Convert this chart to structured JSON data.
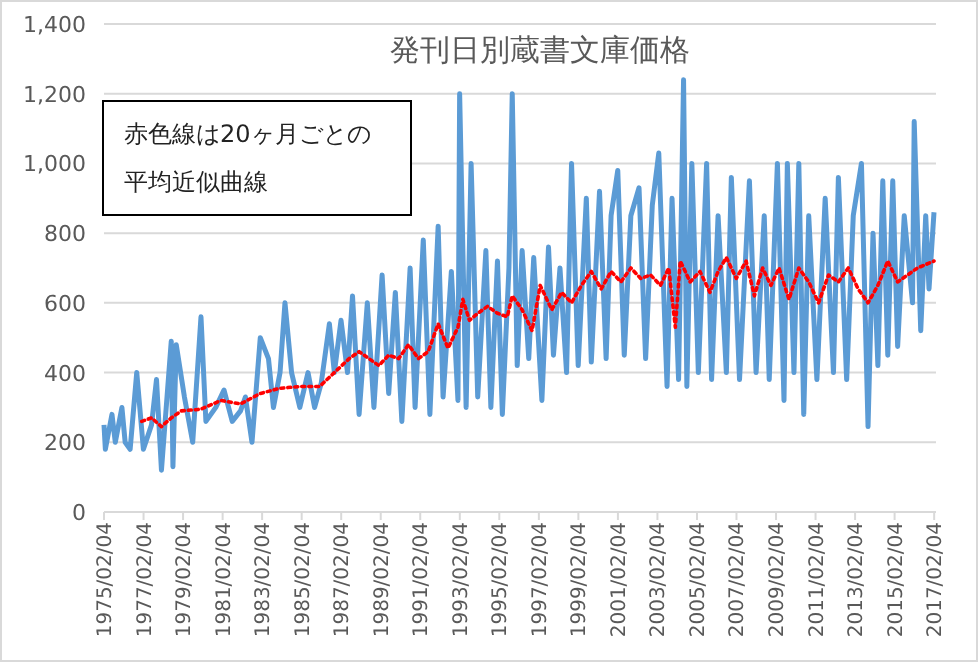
{
  "chart_data": {
    "type": "line",
    "title": "発刊日別蔵書文庫価格",
    "annotations": [
      "赤色線は20ヶ月ごとの平均近似曲線"
    ],
    "series": [
      {
        "color": "#5b9bd5",
        "line_style": "solid",
        "x": [
          "1975-02-04",
          "1975-03",
          "1975-07",
          "1975-09",
          "1976-01",
          "1976-03",
          "1976-06",
          "1976-10",
          "1977-02",
          "1977-07",
          "1977-10",
          "1978-01",
          "1978-07",
          "1978-08",
          "1978-10",
          "1979-03",
          "1979-08",
          "1980-01",
          "1980-04",
          "1980-10",
          "1981-03",
          "1981-08",
          "1982-01",
          "1982-04",
          "1982-08",
          "1983-01",
          "1983-06",
          "1983-09",
          "1984-01",
          "1984-04",
          "1984-08",
          "1985-01",
          "1985-06",
          "1985-10",
          "1986-02",
          "1986-07",
          "1986-10",
          "1987-02",
          "1987-06",
          "1987-09",
          "1988-01",
          "1988-06",
          "1988-10",
          "1989-03",
          "1989-07",
          "1989-11",
          "1990-03",
          "1990-08",
          "1990-11",
          "1991-04",
          "1991-08",
          "1992-01",
          "1992-04",
          "1992-09",
          "1993-01",
          "1993-02",
          "1993-06",
          "1993-09",
          "1994-01",
          "1994-06",
          "1994-09",
          "1995-01",
          "1995-04",
          "1995-08",
          "1995-10",
          "1996-01",
          "1996-04",
          "1996-08",
          "1996-11",
          "1997-04",
          "1997-08",
          "1997-11",
          "1998-03",
          "1998-07",
          "1998-10",
          "1999-02",
          "1999-07",
          "1999-10",
          "2000-03",
          "2000-07",
          "2000-10",
          "2001-02",
          "2001-06",
          "2001-10",
          "2002-03",
          "2002-07",
          "2002-11",
          "2003-03",
          "2003-08",
          "2003-11",
          "2004-03",
          "2004-06",
          "2004-08",
          "2004-11",
          "2005-03",
          "2005-08",
          "2005-11",
          "2006-03",
          "2006-08",
          "2006-11",
          "2007-04",
          "2007-10",
          "2008-02",
          "2008-07",
          "2008-10",
          "2009-03",
          "2009-07",
          "2009-09",
          "2010-01",
          "2010-04",
          "2010-07",
          "2010-10",
          "2011-03",
          "2011-08",
          "2012-01",
          "2012-04",
          "2012-09",
          "2013-01",
          "2013-06",
          "2013-10",
          "2014-01",
          "2014-04",
          "2014-07",
          "2014-10",
          "2015-01",
          "2015-04",
          "2015-08",
          "2016-01",
          "2016-02",
          "2016-06",
          "2016-09",
          "2016-11",
          "2017-02"
        ],
        "values": [
          250,
          180,
          280,
          200,
          300,
          200,
          180,
          400,
          180,
          250,
          380,
          120,
          490,
          130,
          480,
          330,
          200,
          560,
          260,
          300,
          350,
          260,
          290,
          330,
          200,
          500,
          440,
          300,
          400,
          600,
          400,
          300,
          400,
          300,
          370,
          540,
          400,
          550,
          400,
          620,
          280,
          600,
          300,
          680,
          340,
          630,
          260,
          700,
          300,
          780,
          280,
          820,
          330,
          690,
          320,
          1200,
          300,
          1000,
          330,
          750,
          300,
          720,
          280,
          700,
          1200,
          420,
          750,
          440,
          730,
          320,
          760,
          450,
          700,
          400,
          1000,
          420,
          900,
          430,
          920,
          440,
          850,
          980,
          450,
          850,
          930,
          440,
          880,
          1030,
          360,
          900,
          380,
          1240,
          360,
          1000,
          400,
          1000,
          380,
          850,
          400,
          960,
          380,
          950,
          400,
          850,
          380,
          1000,
          320,
          1000,
          400,
          1000,
          280,
          850,
          380,
          900,
          400,
          960,
          380,
          850,
          1000,
          245,
          800,
          420,
          950,
          450,
          950,
          475,
          850,
          600,
          1120,
          520,
          850,
          640,
          860
        ]
      },
      {
        "color": "#ff0000",
        "line_style": "dotted",
        "x": [
          "1977-01",
          "1977-07",
          "1978-01",
          "1978-07",
          "1979-01",
          "1980-01",
          "1981-01",
          "1982-01",
          "1983-01",
          "1984-01",
          "1985-01",
          "1986-01",
          "1986-10",
          "1987-07",
          "1988-01",
          "1988-07",
          "1989-01",
          "1989-07",
          "1990-01",
          "1990-07",
          "1991-01",
          "1991-07",
          "1992-01",
          "1992-07",
          "1993-01",
          "1993-04",
          "1993-08",
          "1994-01",
          "1994-07",
          "1995-01",
          "1995-07",
          "1995-10",
          "1996-04",
          "1996-10",
          "1997-03",
          "1997-10",
          "1998-04",
          "1998-10",
          "1999-04",
          "1999-10",
          "2000-04",
          "2000-10",
          "2001-04",
          "2001-10",
          "2002-04",
          "2002-10",
          "2003-04",
          "2003-09",
          "2004-01",
          "2004-04",
          "2004-10",
          "2005-04",
          "2005-10",
          "2006-03",
          "2006-08",
          "2007-02",
          "2007-08",
          "2008-01",
          "2008-06",
          "2008-11",
          "2009-04",
          "2009-10",
          "2010-04",
          "2010-10",
          "2011-04",
          "2011-10",
          "2012-04",
          "2012-10",
          "2013-04",
          "2013-10",
          "2014-04",
          "2014-10",
          "2015-04",
          "2015-10",
          "2016-04",
          "2017-02"
        ],
        "values": [
          260,
          270,
          245,
          270,
          290,
          295,
          320,
          310,
          340,
          355,
          360,
          360,
          400,
          440,
          460,
          440,
          420,
          450,
          440,
          480,
          440,
          460,
          540,
          470,
          530,
          610,
          550,
          570,
          590,
          570,
          560,
          620,
          580,
          520,
          650,
          580,
          630,
          600,
          650,
          690,
          640,
          690,
          660,
          700,
          670,
          680,
          650,
          700,
          530,
          720,
          660,
          690,
          630,
          690,
          730,
          670,
          720,
          620,
          700,
          650,
          700,
          610,
          700,
          660,
          600,
          680,
          660,
          700,
          640,
          600,
          650,
          720,
          660,
          680,
          700,
          720
        ]
      }
    ],
    "xlim": [
      "1975-02-04",
      "2017-03-10"
    ],
    "xticks": [
      {
        "value": "1975-02-04",
        "label": "1975/02/04"
      },
      {
        "value": "1977-02-04",
        "label": "1977/02/04"
      },
      {
        "value": "1979-02-04",
        "label": "1979/02/04"
      },
      {
        "value": "1981-02-04",
        "label": "1981/02/04"
      },
      {
        "value": "1983-02-04",
        "label": "1983/02/04"
      },
      {
        "value": "1985-02-04",
        "label": "1985/02/04"
      },
      {
        "value": "1987-02-04",
        "label": "1987/02/04"
      },
      {
        "value": "1989-02-04",
        "label": "1989/02/04"
      },
      {
        "value": "1991-02-04",
        "label": "1991/02/04"
      },
      {
        "value": "1993-02-04",
        "label": "1993/02/04"
      },
      {
        "value": "1995-02-04",
        "label": "1995/02/04"
      },
      {
        "value": "1997-02-04",
        "label": "1997/02/04"
      },
      {
        "value": "1999-02-04",
        "label": "1999/02/04"
      },
      {
        "value": "2001-02-04",
        "label": "2001/02/04"
      },
      {
        "value": "2003-02-04",
        "label": "2003/02/04"
      },
      {
        "value": "2005-02-04",
        "label": "2005/02/04"
      },
      {
        "value": "2007-02-04",
        "label": "2007/02/04"
      },
      {
        "value": "2009-02-04",
        "label": "2009/02/04"
      },
      {
        "value": "2011-02-04",
        "label": "2011/02/04"
      },
      {
        "value": "2013-02-04",
        "label": "2013/02/04"
      },
      {
        "value": "2015-02-04",
        "label": "2015/02/04"
      },
      {
        "value": "2017-02-04",
        "label": "2017/02/04"
      }
    ],
    "ylim": [
      0,
      1400
    ],
    "yticks": [
      0,
      200,
      400,
      600,
      800,
      {
        "value": 1000,
        "label": "1,000"
      },
      {
        "value": 1200,
        "label": "1,200"
      },
      {
        "value": 1400,
        "label": "1,400"
      }
    ],
    "grid": "y",
    "marker": "none"
  }
}
